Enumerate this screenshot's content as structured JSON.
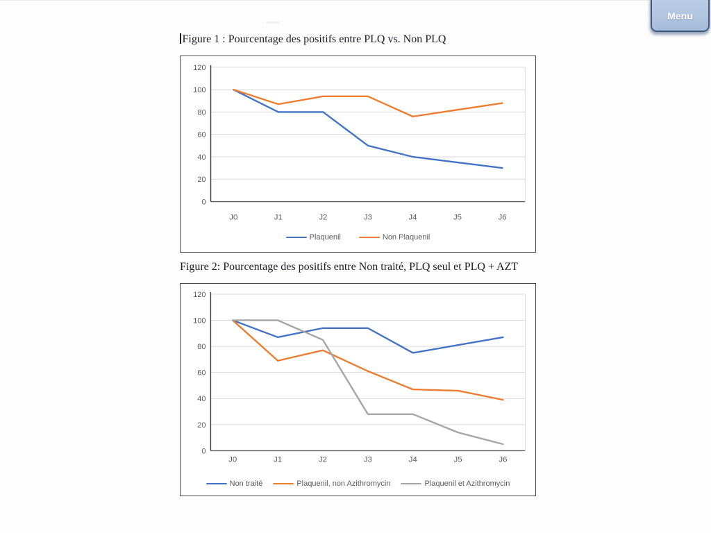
{
  "menu_button": {
    "label": "Menu",
    "fill": "#b3c6e0",
    "border_color": "#3d5a7e",
    "text_color": "#ffffff"
  },
  "figures": [
    {
      "caption": "Figure 1 : Pourcentage des positifs entre PLQ vs. Non PLQ"
    },
    {
      "caption": "Figure 2: Pourcentage des positifs entre Non traité, PLQ seul et PLQ + AZT"
    }
  ],
  "chart_data": [
    {
      "type": "line",
      "title": "Figure 1 : Pourcentage des positifs entre PLQ vs. Non PLQ",
      "categories": [
        "J0",
        "J1",
        "J2",
        "J3",
        "J4",
        "J5",
        "J6"
      ],
      "series": [
        {
          "name": "Plaquenil",
          "color": "#4472C4",
          "values": [
            100,
            80,
            80,
            50,
            40,
            35,
            30
          ]
        },
        {
          "name": "Non Plaquenil",
          "color": "#ED7D31",
          "values": [
            100,
            87,
            94,
            94,
            76,
            82,
            88
          ]
        }
      ],
      "xlabel": "",
      "ylabel": "",
      "ylim": [
        0,
        120
      ],
      "yticks": [
        0,
        20,
        40,
        60,
        80,
        100,
        120
      ],
      "grid": true,
      "legend_position": "bottom"
    },
    {
      "type": "line",
      "title": "Figure 2: Pourcentage des positifs entre Non traité, PLQ seul et PLQ + AZT",
      "categories": [
        "J0",
        "J1",
        "J2",
        "J3",
        "J4",
        "J5",
        "J6"
      ],
      "series": [
        {
          "name": "Non traité",
          "color": "#4472C4",
          "values": [
            100,
            87,
            94,
            94,
            75,
            81,
            87
          ]
        },
        {
          "name": "Plaquenil, non Azithromycin",
          "color": "#ED7D31",
          "values": [
            100,
            69,
            77,
            61,
            47,
            46,
            39
          ]
        },
        {
          "name": "Plaquenil et Azithromycin",
          "color": "#A5A5A5",
          "values": [
            100,
            100,
            85,
            28,
            28,
            14,
            5
          ]
        }
      ],
      "xlabel": "",
      "ylabel": "",
      "ylim": [
        0,
        120
      ],
      "yticks": [
        0,
        20,
        40,
        60,
        80,
        100,
        120
      ],
      "grid": true,
      "legend_position": "bottom"
    }
  ],
  "chart_style": {
    "grid_color": "#D9D9D9",
    "axis_color": "#3f3f3f",
    "x_axis_color": "#595959",
    "tick_label_color": "#595959",
    "tick_font_size": 11,
    "line_width": 2.4
  }
}
